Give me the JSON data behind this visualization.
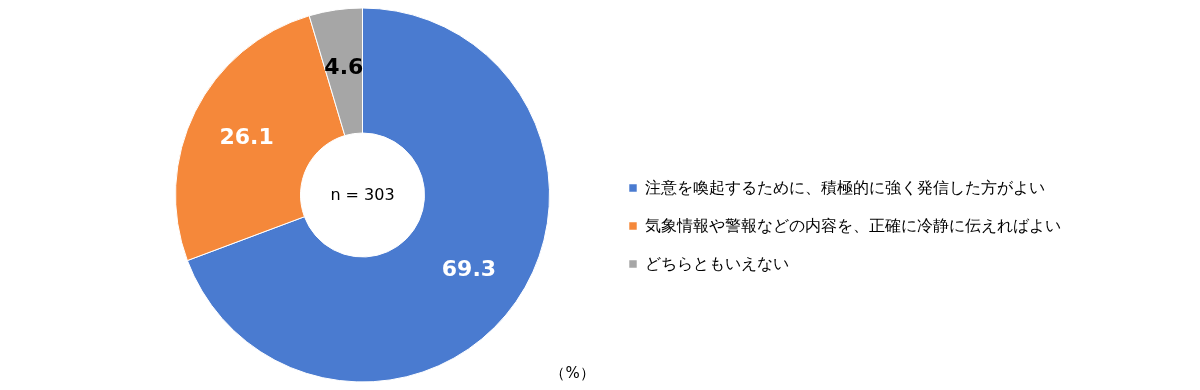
{
  "chart_data": {
    "type": "donut",
    "categories": [
      "注意を喚起するために、積極的に強く発信した方がよい",
      "気象情報や警報などの内容を、正確に冷静に伝えればよい",
      "どちらともいえない"
    ],
    "values": [
      69.3,
      26.1,
      4.6
    ],
    "colors": [
      "#4a7bd0",
      "#f5883a",
      "#a6a6a6"
    ],
    "data_labels": true,
    "legend": "right",
    "annotations": [
      "n = 303",
      "（%）"
    ]
  }
}
